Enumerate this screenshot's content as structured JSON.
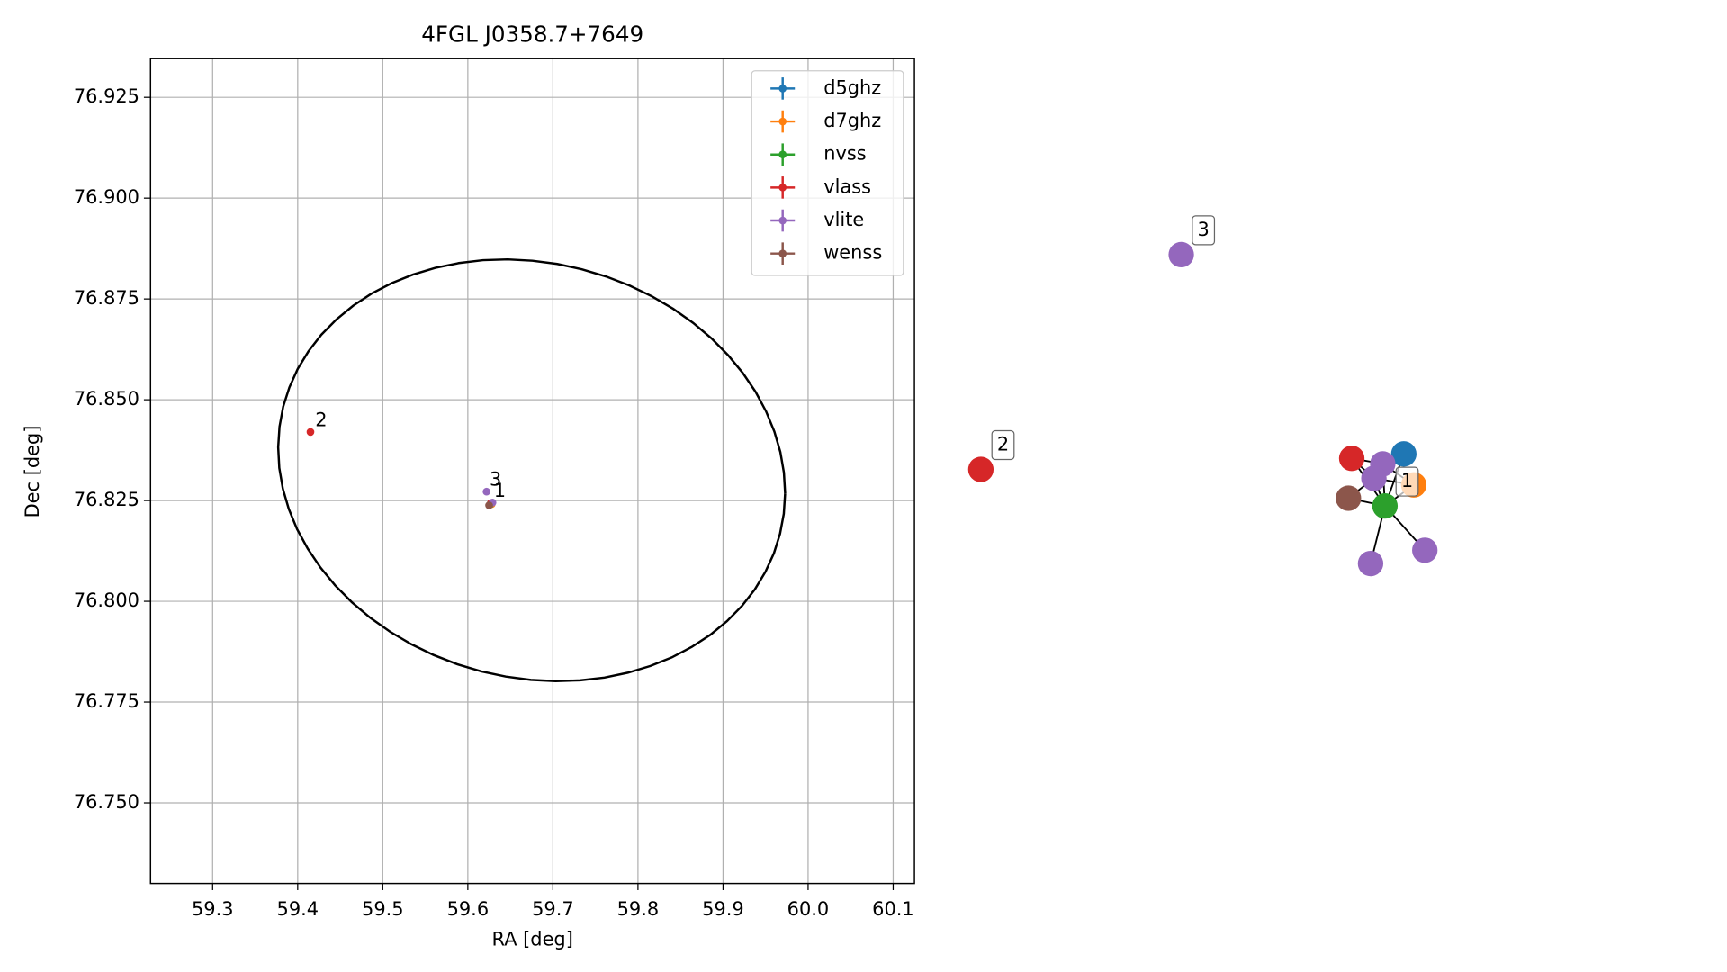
{
  "chart_data": {
    "type": "scatter",
    "title": "4FGL J0358.7+7649",
    "x_label": "RA [deg]",
    "y_label": "Dec [deg]",
    "xlim": [
      59.227,
      60.125
    ],
    "ylim": [
      76.73,
      76.9346
    ],
    "xticks": [
      59.3,
      59.4,
      59.5,
      59.6,
      59.7,
      59.8,
      59.9,
      {
        "value": 60,
        "label": "60.0"
      },
      60.1
    ],
    "yticks": [
      {
        "value": 76.75,
        "label": "76.750"
      },
      76.775,
      {
        "value": 76.8,
        "label": "76.800"
      },
      76.825,
      {
        "value": 76.85,
        "label": "76.850"
      },
      76.875,
      {
        "value": 76.9,
        "label": "76.900"
      },
      76.925
    ],
    "grid": true,
    "legend": "upper right",
    "ellipse": {
      "center": [
        59.675,
        76.8325
      ],
      "semi_axes": [
        0.298,
        0.052
      ],
      "angle": -1.1,
      "color": "#000000"
    },
    "series": [
      {
        "name": "d5ghz",
        "color": "#1f77b4",
        "x": [
          59.627
        ],
        "y": [
          76.8242
        ]
      },
      {
        "name": "d7ghz",
        "color": "#ff7f0e",
        "x": [
          59.628
        ],
        "y": [
          76.8241
        ]
      },
      {
        "name": "nvss",
        "color": "#2ca02c",
        "x": [
          59.626
        ],
        "y": [
          76.824
        ]
      },
      {
        "name": "vlass",
        "color": "#d62728",
        "x": [
          59.627,
          59.415
        ],
        "y": [
          76.8243,
          76.842
        ]
      },
      {
        "name": "vlite",
        "color": "#9467bd",
        "x": [
          59.622,
          59.629
        ],
        "y": [
          76.8272,
          76.8245
        ]
      },
      {
        "name": "wenss",
        "color": "#8c564b",
        "x": [
          59.625
        ],
        "y": [
          76.8238
        ]
      }
    ],
    "annotations": [
      {
        "text": "1",
        "x": 59.628,
        "y": 76.8262
      },
      {
        "text": "2",
        "x": 59.418,
        "y": 76.8437
      },
      {
        "text": "3",
        "x": 59.623,
        "y": 76.829
      }
    ]
  },
  "graph": {
    "nodes": [
      {
        "color": "#9467bd",
        "label": "3"
      },
      {
        "color": "#d62728",
        "label": "2"
      },
      {
        "color": "#1f77b4"
      },
      {
        "color": "#ff7f0e"
      },
      {
        "color": "#2ca02c",
        "label": "1"
      },
      {
        "color": "#d62728"
      },
      {
        "color": "#9467bd"
      },
      {
        "color": "#9467bd"
      },
      {
        "color": "#8c564b"
      },
      {
        "color": "#9467bd"
      },
      {
        "color": "#9467bd"
      }
    ],
    "edges": [
      [
        4,
        2
      ],
      [
        4,
        3
      ],
      [
        4,
        5
      ],
      [
        4,
        6
      ],
      [
        4,
        7
      ],
      [
        4,
        8
      ],
      [
        4,
        9
      ],
      [
        4,
        10
      ],
      [
        5,
        6
      ],
      [
        5,
        7
      ],
      [
        6,
        2
      ],
      [
        7,
        3
      ],
      [
        8,
        7
      ],
      [
        6,
        3
      ]
    ]
  }
}
